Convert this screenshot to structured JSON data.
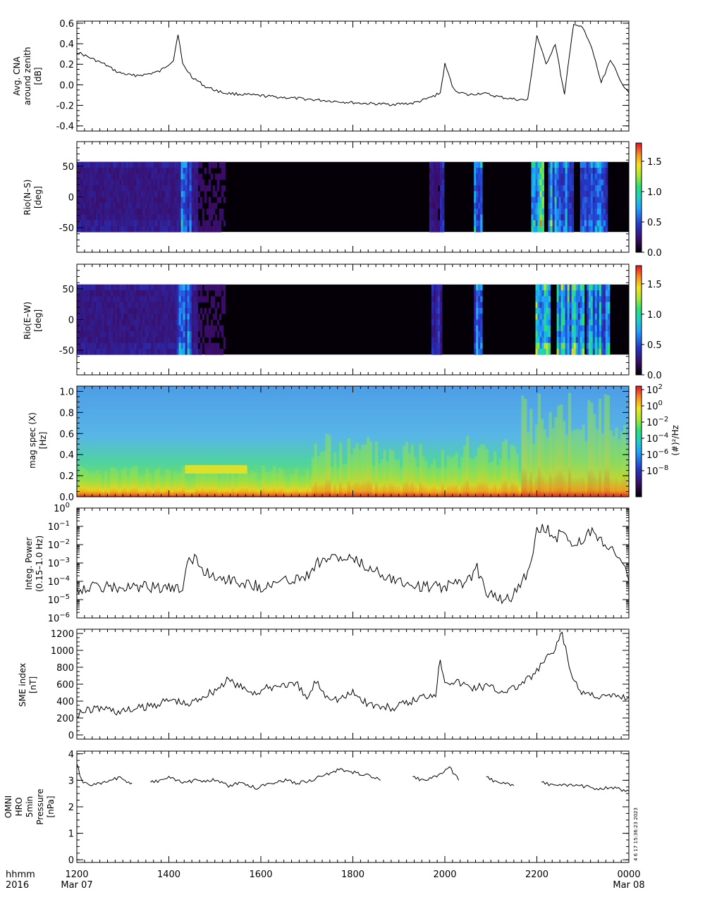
{
  "x_axis": {
    "row1_label": "hhmm",
    "row2_label": "2016",
    "ticks": [
      "1200",
      "1400",
      "1600",
      "1800",
      "2000",
      "2200",
      "0000"
    ],
    "start_date": "Mar 07",
    "end_date": "Mar 08"
  },
  "credit": "4  6 17 15:36:23 2023",
  "chart_data": [
    {
      "type": "line",
      "ylabel": [
        "Avg. CNA",
        "around zenith",
        "[dB]"
      ],
      "ylim": [
        -0.45,
        0.62
      ],
      "yticks": [
        "0.6",
        "0.4",
        "0.2",
        "0.0",
        "-0.2",
        "-0.4"
      ],
      "xlim_hours": [
        12,
        24
      ],
      "series": [
        {
          "x": [
            12.0,
            12.3,
            12.6,
            12.9,
            13.2,
            13.5,
            13.8,
            14.1,
            14.2,
            14.3,
            14.5,
            14.8,
            15.2,
            15.8,
            16.4,
            17.0,
            17.6,
            18.2,
            18.8,
            19.3,
            19.6,
            19.9,
            20.0,
            20.2,
            20.5,
            20.8,
            21.0,
            21.2,
            21.5,
            21.8,
            22.0,
            22.2,
            22.4,
            22.6,
            22.8,
            23.0,
            23.2,
            23.4,
            23.6,
            23.8,
            24.0
          ],
          "y": [
            0.32,
            0.26,
            0.2,
            0.12,
            0.09,
            0.1,
            0.13,
            0.24,
            0.5,
            0.2,
            0.08,
            -0.02,
            -0.08,
            -0.1,
            -0.12,
            -0.14,
            -0.16,
            -0.18,
            -0.19,
            -0.18,
            -0.14,
            -0.08,
            0.2,
            -0.05,
            -0.1,
            -0.08,
            -0.1,
            -0.12,
            -0.14,
            -0.15,
            0.48,
            0.2,
            0.4,
            -0.1,
            0.6,
            0.55,
            0.35,
            0.02,
            0.25,
            0.05,
            -0.08
          ]
        }
      ]
    },
    {
      "type": "heatmap",
      "ylabel": [
        "Rio(N–S)",
        "[deg]"
      ],
      "ylim": [
        -90,
        90
      ],
      "yticks": [
        "50",
        "0",
        "-50"
      ],
      "data_extent": [
        -57,
        57
      ],
      "colorbar": {
        "min": 0.0,
        "max": 1.8,
        "ticks": [
          "1.5",
          "1.0",
          "0.5",
          "0.0"
        ]
      },
      "activity": [
        {
          "center": 14.35,
          "width": 0.25,
          "level": 0.8
        },
        {
          "center": 19.8,
          "width": 0.3,
          "level": 0.3
        },
        {
          "center": 20.7,
          "width": 0.2,
          "level": 0.9
        },
        {
          "center": 22.0,
          "width": 0.3,
          "level": 1.4
        },
        {
          "center": 22.5,
          "width": 0.6,
          "level": 1.0
        },
        {
          "center": 23.2,
          "width": 0.6,
          "level": 0.8
        }
      ]
    },
    {
      "type": "heatmap",
      "ylabel": [
        "Rio(E–W)",
        "[deg]"
      ],
      "ylim": [
        -90,
        90
      ],
      "yticks": [
        "50",
        "0",
        "-50"
      ],
      "data_extent": [
        -57,
        57
      ],
      "colorbar": {
        "min": 0.0,
        "max": 1.8,
        "ticks": [
          "1.5",
          "1.0",
          "0.5",
          "0.0"
        ]
      },
      "activity": [
        {
          "center": 14.3,
          "width": 0.3,
          "level": 0.8
        },
        {
          "center": 19.8,
          "width": 0.2,
          "level": 0.4
        },
        {
          "center": 20.7,
          "width": 0.2,
          "level": 0.7
        },
        {
          "center": 22.1,
          "width": 0.3,
          "level": 1.2
        },
        {
          "center": 22.7,
          "width": 0.6,
          "level": 1.1
        },
        {
          "center": 23.3,
          "width": 0.5,
          "level": 0.9
        }
      ]
    },
    {
      "type": "heatmap",
      "ylabel": [
        "mag spec (X)",
        "[Hz]"
      ],
      "ylim": [
        0.0,
        1.05
      ],
      "yticks": [
        "1.0",
        "0.8",
        "0.6",
        "0.4",
        "0.2",
        "0.0"
      ],
      "colorbar": {
        "scale": "log",
        "label": "(#)²/Hz",
        "ticks": [
          {
            "base": "10",
            "exp": "2"
          },
          {
            "base": "10",
            "exp": "0"
          },
          {
            "base": "10",
            "exp": "−2"
          },
          {
            "base": "10",
            "exp": "−4"
          },
          {
            "base": "10",
            "exp": "−6"
          },
          {
            "base": "10",
            "exp": "−8"
          }
        ]
      }
    },
    {
      "type": "line",
      "ylabel": [
        "Integ. Power",
        "(0.15–1.0 Hz)"
      ],
      "yscale": "log",
      "ylim": [
        1e-06,
        1
      ],
      "yticks": [
        {
          "base": "10",
          "exp": "0"
        },
        {
          "base": "10",
          "exp": "−1"
        },
        {
          "base": "10",
          "exp": "−2"
        },
        {
          "base": "10",
          "exp": "−3"
        },
        {
          "base": "10",
          "exp": "−4"
        },
        {
          "base": "10",
          "exp": "−5"
        },
        {
          "base": "10",
          "exp": "−6"
        }
      ],
      "series": [
        {
          "x": [
            12.0,
            12.5,
            13.0,
            13.5,
            14.0,
            14.3,
            14.4,
            14.6,
            14.8,
            15.0,
            15.5,
            16.0,
            16.5,
            17.0,
            17.2,
            17.5,
            18.0,
            18.3,
            18.6,
            19.0,
            19.5,
            20.0,
            20.5,
            20.7,
            20.9,
            21.2,
            21.4,
            21.6,
            21.8,
            22.0,
            22.2,
            22.4,
            22.6,
            22.8,
            23.0,
            23.2,
            23.4,
            23.6,
            23.8,
            24.0
          ],
          "y": [
            4e-05,
            5e-05,
            4e-05,
            5e-05,
            4e-05,
            3e-05,
            0.002,
            0.0015,
            0.0003,
            0.0002,
            0.0001,
            5e-05,
            0.0001,
            0.0002,
            0.001,
            0.002,
            0.0015,
            0.0006,
            0.0003,
            0.0001,
            5e-05,
            5e-05,
            0.0001,
            0.0005,
            3e-05,
            1e-05,
            1e-05,
            5e-05,
            0.0003,
            0.05,
            0.08,
            0.02,
            0.08,
            0.006,
            0.02,
            0.05,
            0.02,
            0.005,
            0.003,
            0.0001
          ]
        }
      ]
    },
    {
      "type": "line",
      "ylabel": [
        "SME index",
        "[nT]"
      ],
      "ylim": [
        -50,
        1250
      ],
      "yticks": [
        "1200",
        "1000",
        "800",
        "600",
        "400",
        "200",
        "0"
      ],
      "series": [
        {
          "x": [
            12.0,
            12.3,
            12.6,
            12.9,
            13.2,
            13.5,
            13.8,
            14.1,
            14.4,
            14.7,
            15.0,
            15.3,
            15.6,
            15.9,
            16.2,
            16.5,
            16.8,
            17.0,
            17.2,
            17.4,
            17.7,
            18.0,
            18.3,
            18.6,
            18.9,
            19.2,
            19.5,
            19.8,
            19.9,
            20.0,
            20.3,
            20.6,
            20.9,
            21.2,
            21.5,
            21.8,
            22.0,
            22.2,
            22.4,
            22.55,
            22.7,
            22.9,
            23.2,
            23.5,
            23.8,
            24.0
          ],
          "y": [
            250,
            300,
            320,
            270,
            300,
            330,
            380,
            420,
            350,
            450,
            530,
            650,
            550,
            500,
            560,
            600,
            580,
            420,
            640,
            480,
            420,
            500,
            380,
            330,
            320,
            380,
            450,
            500,
            900,
            650,
            620,
            560,
            580,
            520,
            550,
            650,
            750,
            900,
            1000,
            1220,
            800,
            520,
            480,
            450,
            460,
            450
          ]
        }
      ]
    },
    {
      "type": "line",
      "ylabel": [
        "OMNI",
        "HRO",
        "5min",
        "Pressure",
        "[nPa]"
      ],
      "ylim": [
        -0.1,
        4.1
      ],
      "yticks": [
        "4",
        "3",
        "2",
        "1",
        "0"
      ],
      "series": [
        {
          "x": [
            12.0,
            12.1,
            12.3,
            12.6,
            12.9,
            13.2,
            13.4,
            13.6,
            14.0,
            14.3,
            14.6,
            15.0,
            15.3,
            15.6,
            15.9,
            16.2,
            16.5,
            16.8,
            17.1,
            17.4,
            17.7,
            18.0,
            18.3,
            18.6,
            18.8,
            19.3,
            19.6,
            19.9,
            20.1,
            20.3,
            20.6,
            20.9,
            21.2,
            21.5,
            21.8,
            22.1,
            22.5,
            22.9,
            23.3,
            23.7,
            24.0
          ],
          "y": [
            3.6,
            3.0,
            2.8,
            2.9,
            3.1,
            2.9,
            null,
            2.9,
            3.1,
            2.9,
            3.0,
            3.0,
            2.8,
            2.9,
            2.7,
            2.9,
            3.0,
            2.9,
            3.0,
            3.2,
            3.4,
            3.3,
            3.2,
            3.0,
            null,
            3.1,
            3.0,
            3.2,
            3.5,
            3.0,
            null,
            3.1,
            2.9,
            2.8,
            null,
            2.9,
            2.8,
            2.8,
            2.7,
            2.7,
            2.6
          ]
        }
      ]
    }
  ]
}
